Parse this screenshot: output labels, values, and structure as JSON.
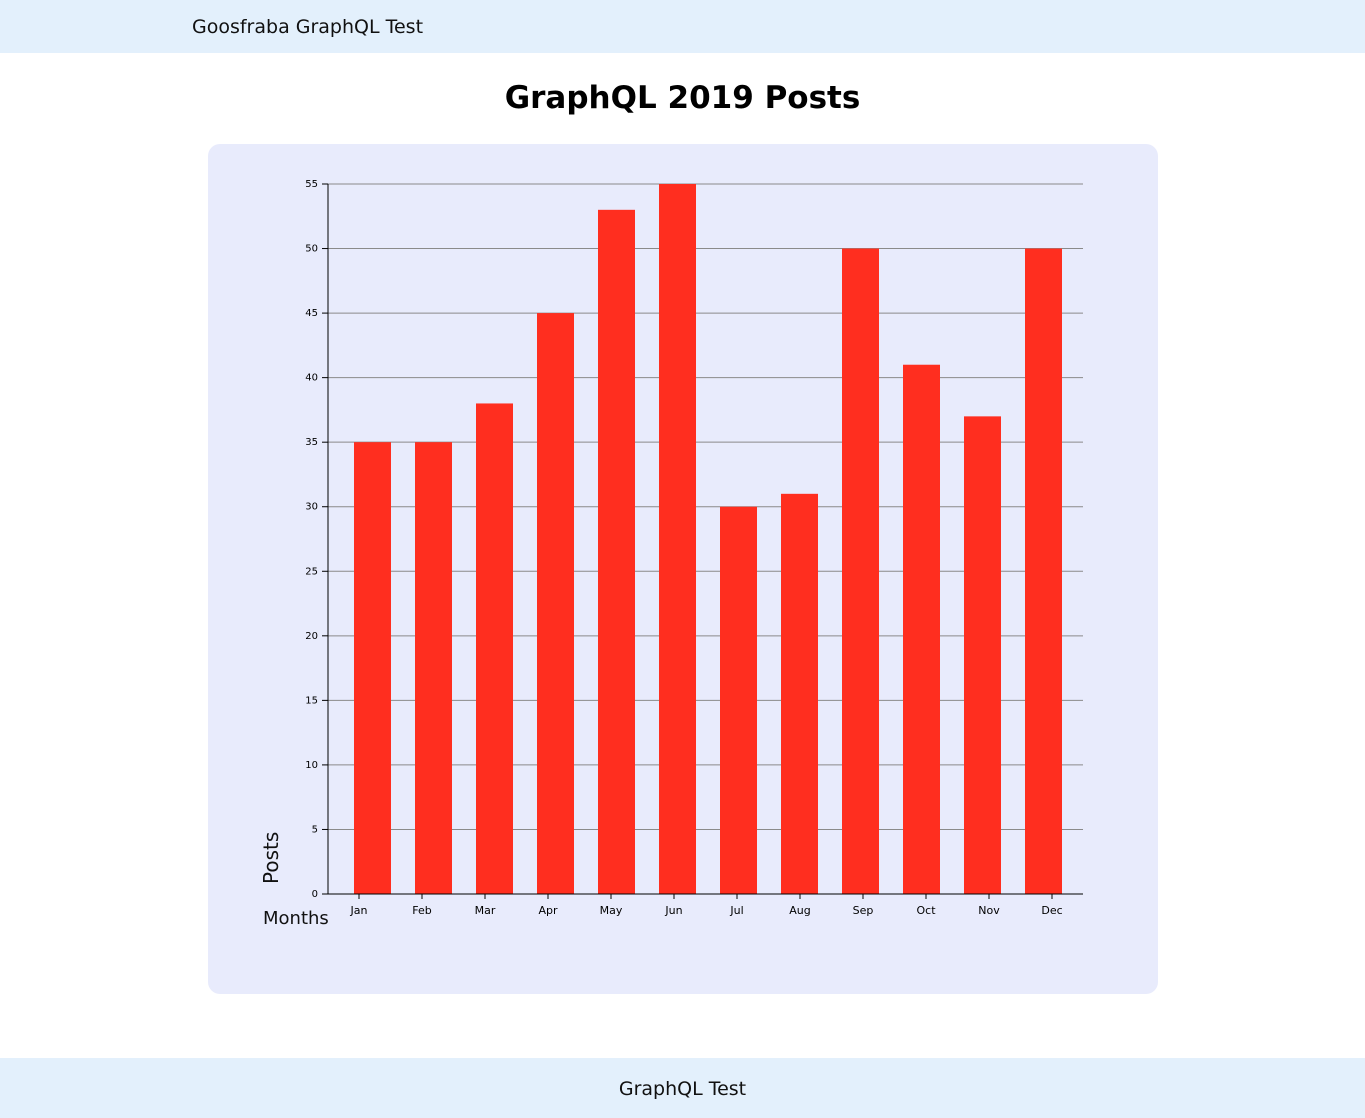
{
  "header": {
    "brand": "Goosfraba GraphQL Test"
  },
  "page": {
    "title": "GraphQL 2019 Posts"
  },
  "footer": {
    "text": "GraphQL Test"
  },
  "colors": {
    "bar": "#ff2e1f",
    "card_background": "#e8ebfc",
    "bars_header_background": "#e3f0fc",
    "grid": "#8a8a8a"
  },
  "chart_data": {
    "type": "bar",
    "title": "",
    "xlabel": "Months",
    "ylabel": "Posts",
    "categories": [
      "Jan",
      "Feb",
      "Mar",
      "Apr",
      "May",
      "Jun",
      "Jul",
      "Aug",
      "Sep",
      "Oct",
      "Nov",
      "Dec"
    ],
    "values": [
      35,
      35,
      38,
      45,
      53,
      55,
      30,
      31,
      50,
      41,
      37,
      50
    ],
    "ylim": [
      0,
      55
    ],
    "yticks": [
      0,
      5,
      10,
      15,
      20,
      25,
      30,
      35,
      40,
      45,
      50,
      55
    ],
    "grid": true
  }
}
